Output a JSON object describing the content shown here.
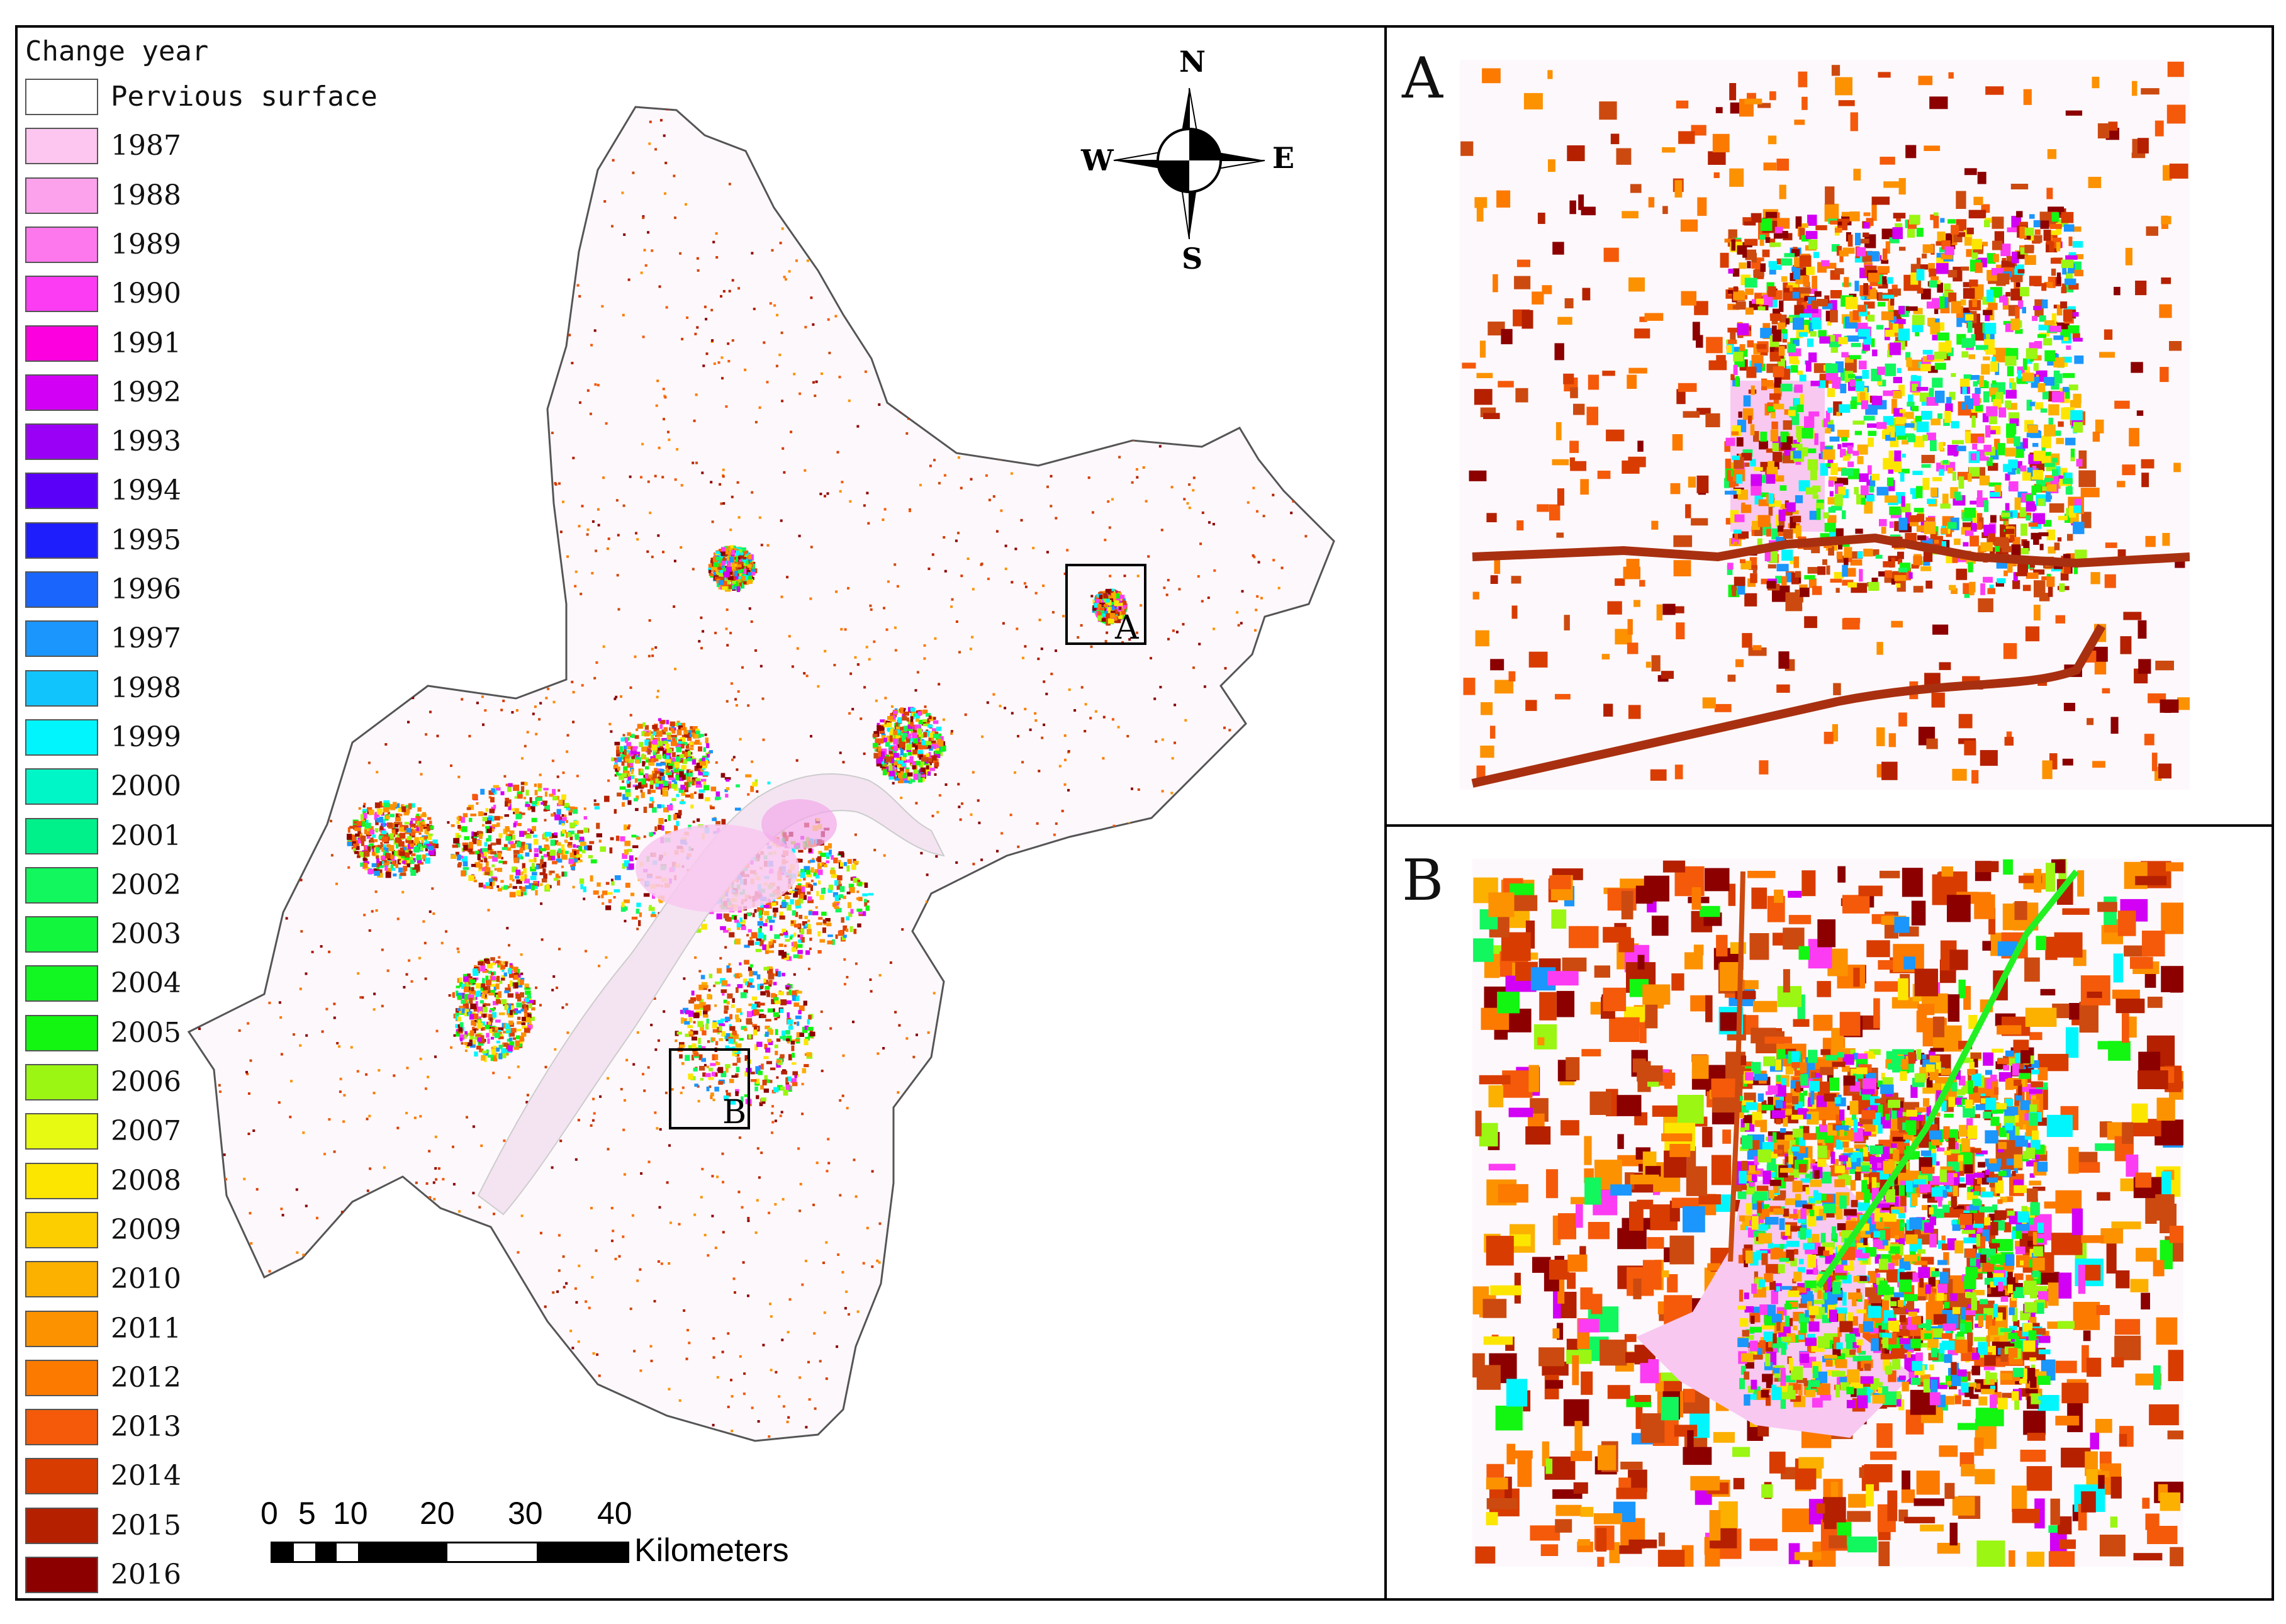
{
  "legend": {
    "title": "Change year",
    "items": [
      {
        "label": "Pervious surface",
        "color": "#ffffff",
        "mono": true
      },
      {
        "label": "1987",
        "color": "#fcc6f0"
      },
      {
        "label": "1988",
        "color": "#fca2ec"
      },
      {
        "label": "1989",
        "color": "#fc78ec"
      },
      {
        "label": "1990",
        "color": "#fc3cf2"
      },
      {
        "label": "1991",
        "color": "#fc00e0"
      },
      {
        "label": "1992",
        "color": "#d200f4"
      },
      {
        "label": "1993",
        "color": "#9a00f6"
      },
      {
        "label": "1994",
        "color": "#5a00f8"
      },
      {
        "label": "1995",
        "color": "#1e1efc"
      },
      {
        "label": "1996",
        "color": "#1a66fc"
      },
      {
        "label": "1997",
        "color": "#1a96fc"
      },
      {
        "label": "1998",
        "color": "#12c4fc"
      },
      {
        "label": "1999",
        "color": "#00f6fc"
      },
      {
        "label": "2000",
        "color": "#00f6c6"
      },
      {
        "label": "2001",
        "color": "#00f08a"
      },
      {
        "label": "2002",
        "color": "#12f65e"
      },
      {
        "label": "2003",
        "color": "#12f63e"
      },
      {
        "label": "2004",
        "color": "#12f622"
      },
      {
        "label": "2005",
        "color": "#12f612"
      },
      {
        "label": "2006",
        "color": "#9af612"
      },
      {
        "label": "2007",
        "color": "#e6fa12"
      },
      {
        "label": "2008",
        "color": "#fce600"
      },
      {
        "label": "2009",
        "color": "#fcce00"
      },
      {
        "label": "2010",
        "color": "#fcb000"
      },
      {
        "label": "2011",
        "color": "#fc9200"
      },
      {
        "label": "2012",
        "color": "#fc7a00"
      },
      {
        "label": "2013",
        "color": "#f45a0a"
      },
      {
        "label": "2014",
        "color": "#d83c00"
      },
      {
        "label": "2015",
        "color": "#b42000"
      },
      {
        "label": "2016",
        "color": "#8c0000"
      }
    ]
  },
  "compass": {
    "n": "N",
    "s": "S",
    "e": "E",
    "w": "W"
  },
  "scale": {
    "ticks": [
      "0",
      "5",
      "10",
      "20",
      "30",
      "40"
    ],
    "unit": "Kilometers"
  },
  "boxes": {
    "a": "A",
    "b": "B"
  },
  "insets": {
    "a_label": "A",
    "b_label": "B"
  },
  "colors": {
    "boundary": "#555555",
    "map_bg": "#fdf8fc",
    "river": "#f4dcf2",
    "urban_core": "#f8c8f0"
  }
}
